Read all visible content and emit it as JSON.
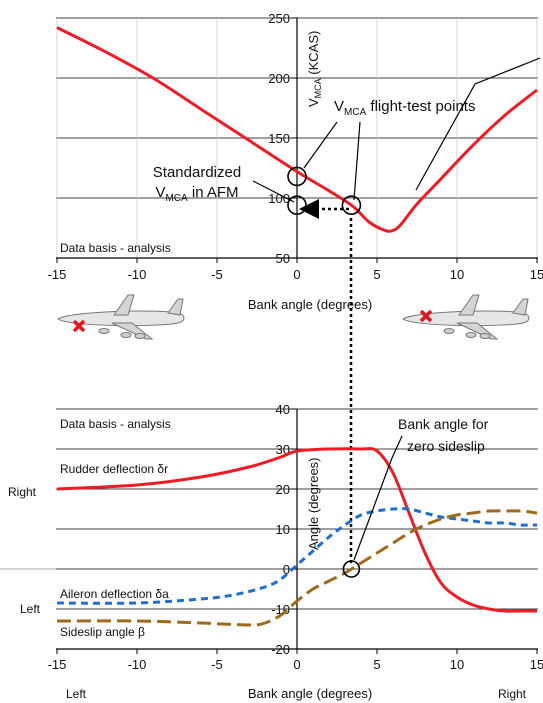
{
  "chart_data": [
    {
      "type": "line",
      "title": "",
      "xlabel": "Bank angle (degrees)",
      "ylabel": "VMCA (KCAS)",
      "ylabel_main": "V",
      "ylabel_sub": "MCA",
      "ylabel_tail": " (KCAS)",
      "xlim": [
        -15,
        15
      ],
      "ylim": [
        50,
        250
      ],
      "x_ticks": [
        -15,
        -10,
        -5,
        0,
        5,
        10,
        15
      ],
      "y_ticks": [
        50,
        100,
        150,
        200,
        250
      ],
      "grid": true,
      "note": "Data basis - analysis",
      "series": [
        {
          "color": "#ee1c25",
          "x": [
            -15,
            -12,
            -9,
            -6,
            -3,
            0,
            2,
            3.5,
            4.5,
            5.5,
            6,
            6.5,
            7.5,
            9,
            11,
            13,
            15
          ],
          "y": [
            242,
            222,
            200,
            174,
            148,
            122,
            106,
            93,
            80,
            73,
            73,
            78,
            95,
            116,
            144,
            169,
            190
          ]
        }
      ],
      "markers": [
        {
          "x": 0,
          "y": 118
        },
        {
          "x": 0,
          "y": 94
        },
        {
          "x": 3.4,
          "y": 94
        }
      ],
      "annotations": {
        "standardized_line1": "Standardized",
        "standardized_line2_main": "V",
        "standardized_line2_sub": "MCA",
        "standardized_line2_tail": " in AFM",
        "flight_test_main": "V",
        "flight_test_sub": "MCA",
        "flight_test_tail": " flight-test points"
      }
    },
    {
      "type": "line",
      "title": "",
      "xlabel": "Bank angle (degrees)",
      "ylabel": "Angle (degrees)",
      "xlim": [
        -15,
        15
      ],
      "ylim": [
        -20,
        40
      ],
      "x_ticks": [
        -15,
        -10,
        -5,
        0,
        5,
        10,
        15
      ],
      "y_ticks": [
        -20,
        -10,
        0,
        10,
        20,
        30,
        40
      ],
      "grid": true,
      "note": "Data basis - analysis",
      "side_labels": {
        "right": "Right",
        "left": "Left",
        "bottom_left": "Left",
        "bottom_right": "Right"
      },
      "series": [
        {
          "name": "Rudder deflection δr",
          "color": "#ee1c25",
          "style": "solid",
          "x": [
            -15,
            -10,
            -6,
            -3,
            -1,
            0,
            2,
            4,
            5,
            6,
            7,
            8,
            9,
            10,
            11,
            12,
            13,
            14,
            15
          ],
          "y": [
            20,
            21,
            23,
            25.5,
            28,
            29.5,
            30,
            30,
            29.5,
            24,
            14,
            4,
            -3.5,
            -7,
            -9,
            -10,
            -10.5,
            -10.5,
            -10.5
          ]
        },
        {
          "name": "Aileron deflection δa",
          "color": "#1e6fd0",
          "style": "dash",
          "x": [
            -15,
            -10,
            -6,
            -4,
            -2,
            -1,
            0,
            1,
            2,
            3,
            4,
            5,
            6,
            7,
            8,
            9,
            10,
            11,
            12,
            13,
            14,
            15
          ],
          "y": [
            -8.5,
            -8.5,
            -7.5,
            -6.5,
            -4.5,
            -2.5,
            1,
            4.5,
            8,
            11,
            13.5,
            14.5,
            15,
            15,
            14,
            13,
            12.5,
            12,
            11.5,
            11.5,
            11,
            11
          ]
        },
        {
          "name": "Sideslip angle β",
          "color": "#a06a1c",
          "style": "dash",
          "x": [
            -15,
            -10,
            -6,
            -3,
            -2,
            -1,
            0,
            1,
            2,
            3,
            4,
            5,
            6,
            7,
            8,
            9,
            10,
            11,
            12,
            13,
            14,
            15
          ],
          "y": [
            -13,
            -13,
            -13.5,
            -14,
            -13.5,
            -11.5,
            -8,
            -5,
            -3,
            -1,
            1.5,
            4,
            6.5,
            9,
            11,
            12.5,
            13.5,
            14,
            14.5,
            14.5,
            14.5,
            14
          ]
        }
      ],
      "markers": [
        {
          "x": 3.4,
          "y": 0
        }
      ],
      "annotations": {
        "zero_sideslip_line1": "Bank angle for",
        "zero_sideslip_line2": "zero sideslip"
      }
    }
  ]
}
